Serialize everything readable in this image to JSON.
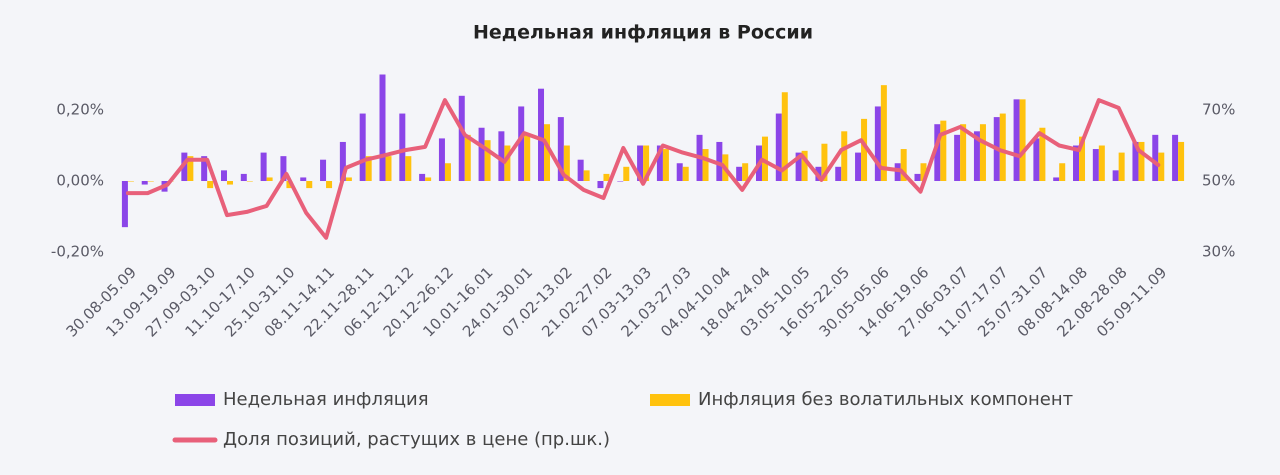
{
  "chart_data": {
    "type": "bar-line",
    "title": "Недельная инфляция в России",
    "categories": [
      "30.08-05.09",
      null,
      "13.09-19.09",
      null,
      "27.09-03.10",
      null,
      "11.10-17.10",
      null,
      "25.10-31.10",
      null,
      "08.11-14.11",
      null,
      "22.11-28.11",
      null,
      "06.12-12.12",
      null,
      "20.12-26.12",
      null,
      "10.01-16.01",
      null,
      "24.01-30.01",
      null,
      "07.02-13.02",
      null,
      "21.02-27.02",
      null,
      "07.03-13.03",
      null,
      "21.03-27.03",
      null,
      "04.04-10.04",
      null,
      "18.04-24.04",
      null,
      "03.05-10.05",
      null,
      "16.05-22.05",
      null,
      "30.05-05.06",
      null,
      "14.06-19.06",
      null,
      "27.06-03.07",
      null,
      "11.07-17.07",
      null,
      "25.07-31.07",
      null,
      "08.08-14.08",
      null,
      "22.08-28.08",
      null,
      "05.09-11.09",
      null
    ],
    "series": [
      {
        "name": "Недельная инфляция",
        "color": "#8b45e8",
        "kind": "bar",
        "values": [
          -0.13,
          -0.01,
          -0.03,
          0.08,
          0.07,
          0.03,
          0.02,
          0.08,
          0.07,
          0.01,
          0.06,
          0.11,
          0.19,
          0.3,
          0.19,
          0.02,
          0.12,
          0.24,
          0.15,
          0.14,
          0.21,
          0.26,
          0.18,
          0.06,
          -0.02,
          0.0,
          0.1,
          0.1,
          0.05,
          0.13,
          0.11,
          0.04,
          0.1,
          0.19,
          0.08,
          0.04,
          0.04,
          0.08,
          0.21,
          0.05,
          0.02,
          0.16,
          0.13,
          0.14,
          0.18,
          0.23,
          0.12,
          0.01,
          0.1,
          0.09,
          0.03,
          0.11,
          0.13,
          0.13
        ]
      },
      {
        "name": "Инфляция без волатильных компонент",
        "color": "#ffc20e",
        "kind": "bar",
        "values": [
          0.0,
          0.0,
          0.0,
          0.07,
          -0.02,
          -0.01,
          0.0,
          0.01,
          -0.02,
          -0.02,
          -0.02,
          0.01,
          0.07,
          0.07,
          0.07,
          0.01,
          0.05,
          0.13,
          0.115,
          0.1,
          0.13,
          0.16,
          0.1,
          0.03,
          0.02,
          0.04,
          0.1,
          0.09,
          0.04,
          0.09,
          0.075,
          0.05,
          0.125,
          0.25,
          0.085,
          0.105,
          0.14,
          0.175,
          0.27,
          0.09,
          0.05,
          0.17,
          0.16,
          0.16,
          0.19,
          0.23,
          0.15,
          0.05,
          0.125,
          0.1,
          0.08,
          0.11,
          0.08,
          0.11
        ]
      },
      {
        "name": "Доля позиций, растущих в цене (пр.шк.)",
        "color": "#e8607a",
        "kind": "line",
        "axis": "y2",
        "values": [
          46.6,
          46.6,
          49,
          56,
          56,
          40.4,
          41.3,
          43,
          52,
          41,
          34,
          53.7,
          56,
          57.3,
          58.7,
          59.6,
          72.8,
          63,
          59.3,
          55.4,
          63.5,
          61.5,
          51.7,
          47.5,
          45.2,
          59.3,
          49.2,
          60,
          58,
          56.5,
          54.5,
          47.5,
          56,
          53,
          57.3,
          50.3,
          58.7,
          61.5,
          53.7,
          53,
          47,
          63,
          65.2,
          61.5,
          58.7,
          57,
          63.5,
          60,
          58.7,
          72.8,
          70.6,
          58.7,
          54.5,
          null
        ]
      }
    ],
    "ylim": [
      -0.25,
      0.32
    ],
    "yticks": [
      {
        "value": -0.2,
        "label": "-0,20%"
      },
      {
        "value": 0,
        "label": "0,00%"
      },
      {
        "value": 0.2,
        "label": "0,20%"
      }
    ],
    "y2lim": [
      25,
      82
    ],
    "y2ticks": [
      {
        "value": 30,
        "label": "30%"
      },
      {
        "value": 50,
        "label": "50%"
      },
      {
        "value": 70,
        "label": "70%"
      }
    ],
    "legend": "bottom"
  }
}
